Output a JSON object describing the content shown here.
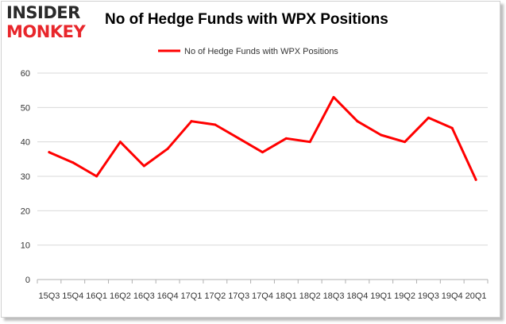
{
  "logo": {
    "line1": "INSIDER",
    "line2": "MONKEY"
  },
  "chart_data": {
    "type": "line",
    "title": "No of Hedge Funds with WPX Positions",
    "xlabel": "",
    "ylabel": "",
    "categories": [
      "15Q3",
      "15Q4",
      "16Q1",
      "16Q2",
      "16Q3",
      "16Q4",
      "17Q1",
      "17Q2",
      "17Q3",
      "17Q4",
      "18Q1",
      "18Q2",
      "18Q3",
      "18Q4",
      "19Q1",
      "19Q2",
      "19Q3",
      "19Q4",
      "20Q1"
    ],
    "series": [
      {
        "name": "No of Hedge Funds with WPX Positions",
        "color": "#ff0000",
        "values": [
          37,
          34,
          30,
          40,
          33,
          38,
          46,
          45,
          41,
          37,
          41,
          40,
          53,
          46,
          42,
          40,
          47,
          44,
          29
        ]
      }
    ],
    "ylim": [
      0,
      60
    ],
    "yticks": [
      0,
      10,
      20,
      30,
      40,
      50,
      60
    ],
    "grid": true,
    "legend_position": "top"
  }
}
